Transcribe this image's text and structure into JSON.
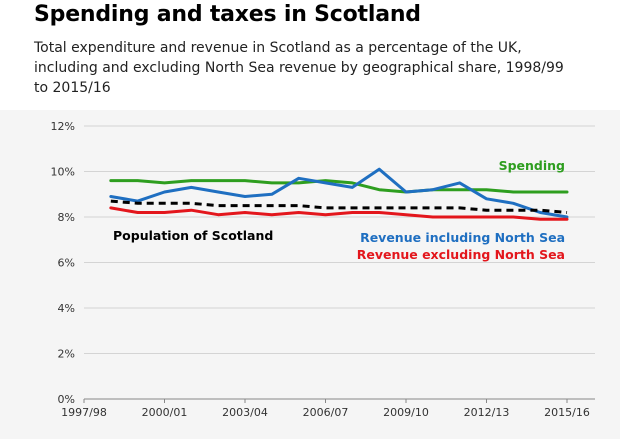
{
  "header": {
    "title": "Spending and taxes in Scotland",
    "subtitle": "Total expenditure and revenue in Scotland as a percentage of the UK, including and excluding North Sea revenue by geographical share, 1998/99 to 2015/16"
  },
  "chart_data": {
    "type": "line",
    "title": "Spending and taxes in Scotland",
    "subtitle": "Total expenditure and revenue in Scotland as a percentage of the UK, including and excluding North Sea revenue by geographical share, 1998/99 to 2015/16",
    "xlabel": "",
    "ylabel": "",
    "x": [
      "1998/99",
      "1999/00",
      "2000/01",
      "2001/02",
      "2002/03",
      "2003/04",
      "2004/05",
      "2005/06",
      "2006/07",
      "2007/08",
      "2008/09",
      "2009/10",
      "2010/11",
      "2011/12",
      "2012/13",
      "2013/14",
      "2014/15",
      "2015/16"
    ],
    "x_tick_labels": [
      "1997/98",
      "2000/01",
      "2003/04",
      "2006/07",
      "2009/10",
      "2012/13",
      "2015/16"
    ],
    "y_tick_labels": [
      "0%",
      "2%",
      "4%",
      "6%",
      "8%",
      "10%",
      "12%"
    ],
    "ylim": [
      0,
      12
    ],
    "grid": true,
    "series": [
      {
        "name": "Spending",
        "color": "#2e9e1f",
        "style": "solid",
        "values": [
          9.6,
          9.6,
          9.5,
          9.6,
          9.6,
          9.6,
          9.5,
          9.5,
          9.6,
          9.5,
          9.2,
          9.1,
          9.2,
          9.2,
          9.2,
          9.1,
          9.1,
          9.1
        ]
      },
      {
        "name": "Revenue including North Sea",
        "color": "#1f6fc1",
        "style": "solid",
        "values": [
          8.9,
          8.7,
          9.1,
          9.3,
          9.1,
          8.9,
          9.0,
          9.7,
          9.5,
          9.3,
          10.1,
          9.1,
          9.2,
          9.5,
          8.8,
          8.6,
          8.2,
          8.0
        ]
      },
      {
        "name": "Population of Scotland",
        "color": "#000000",
        "style": "dashed",
        "values": [
          8.7,
          8.6,
          8.6,
          8.6,
          8.5,
          8.5,
          8.5,
          8.5,
          8.4,
          8.4,
          8.4,
          8.4,
          8.4,
          8.4,
          8.3,
          8.3,
          8.3,
          8.2
        ]
      },
      {
        "name": "Revenue excluding North Sea",
        "color": "#e3161c",
        "style": "solid",
        "values": [
          8.4,
          8.2,
          8.2,
          8.3,
          8.1,
          8.2,
          8.1,
          8.2,
          8.1,
          8.2,
          8.2,
          8.1,
          8.0,
          8.0,
          8.0,
          8.0,
          7.9,
          7.9
        ]
      }
    ],
    "labels": [
      {
        "text": "Spending",
        "color": "#2e9e1f"
      },
      {
        "text": "Population of Scotland",
        "color": "#000000"
      },
      {
        "text": "Revenue including North Sea",
        "color": "#1f6fc1"
      },
      {
        "text": "Revenue excluding North Sea",
        "color": "#e3161c"
      }
    ]
  }
}
